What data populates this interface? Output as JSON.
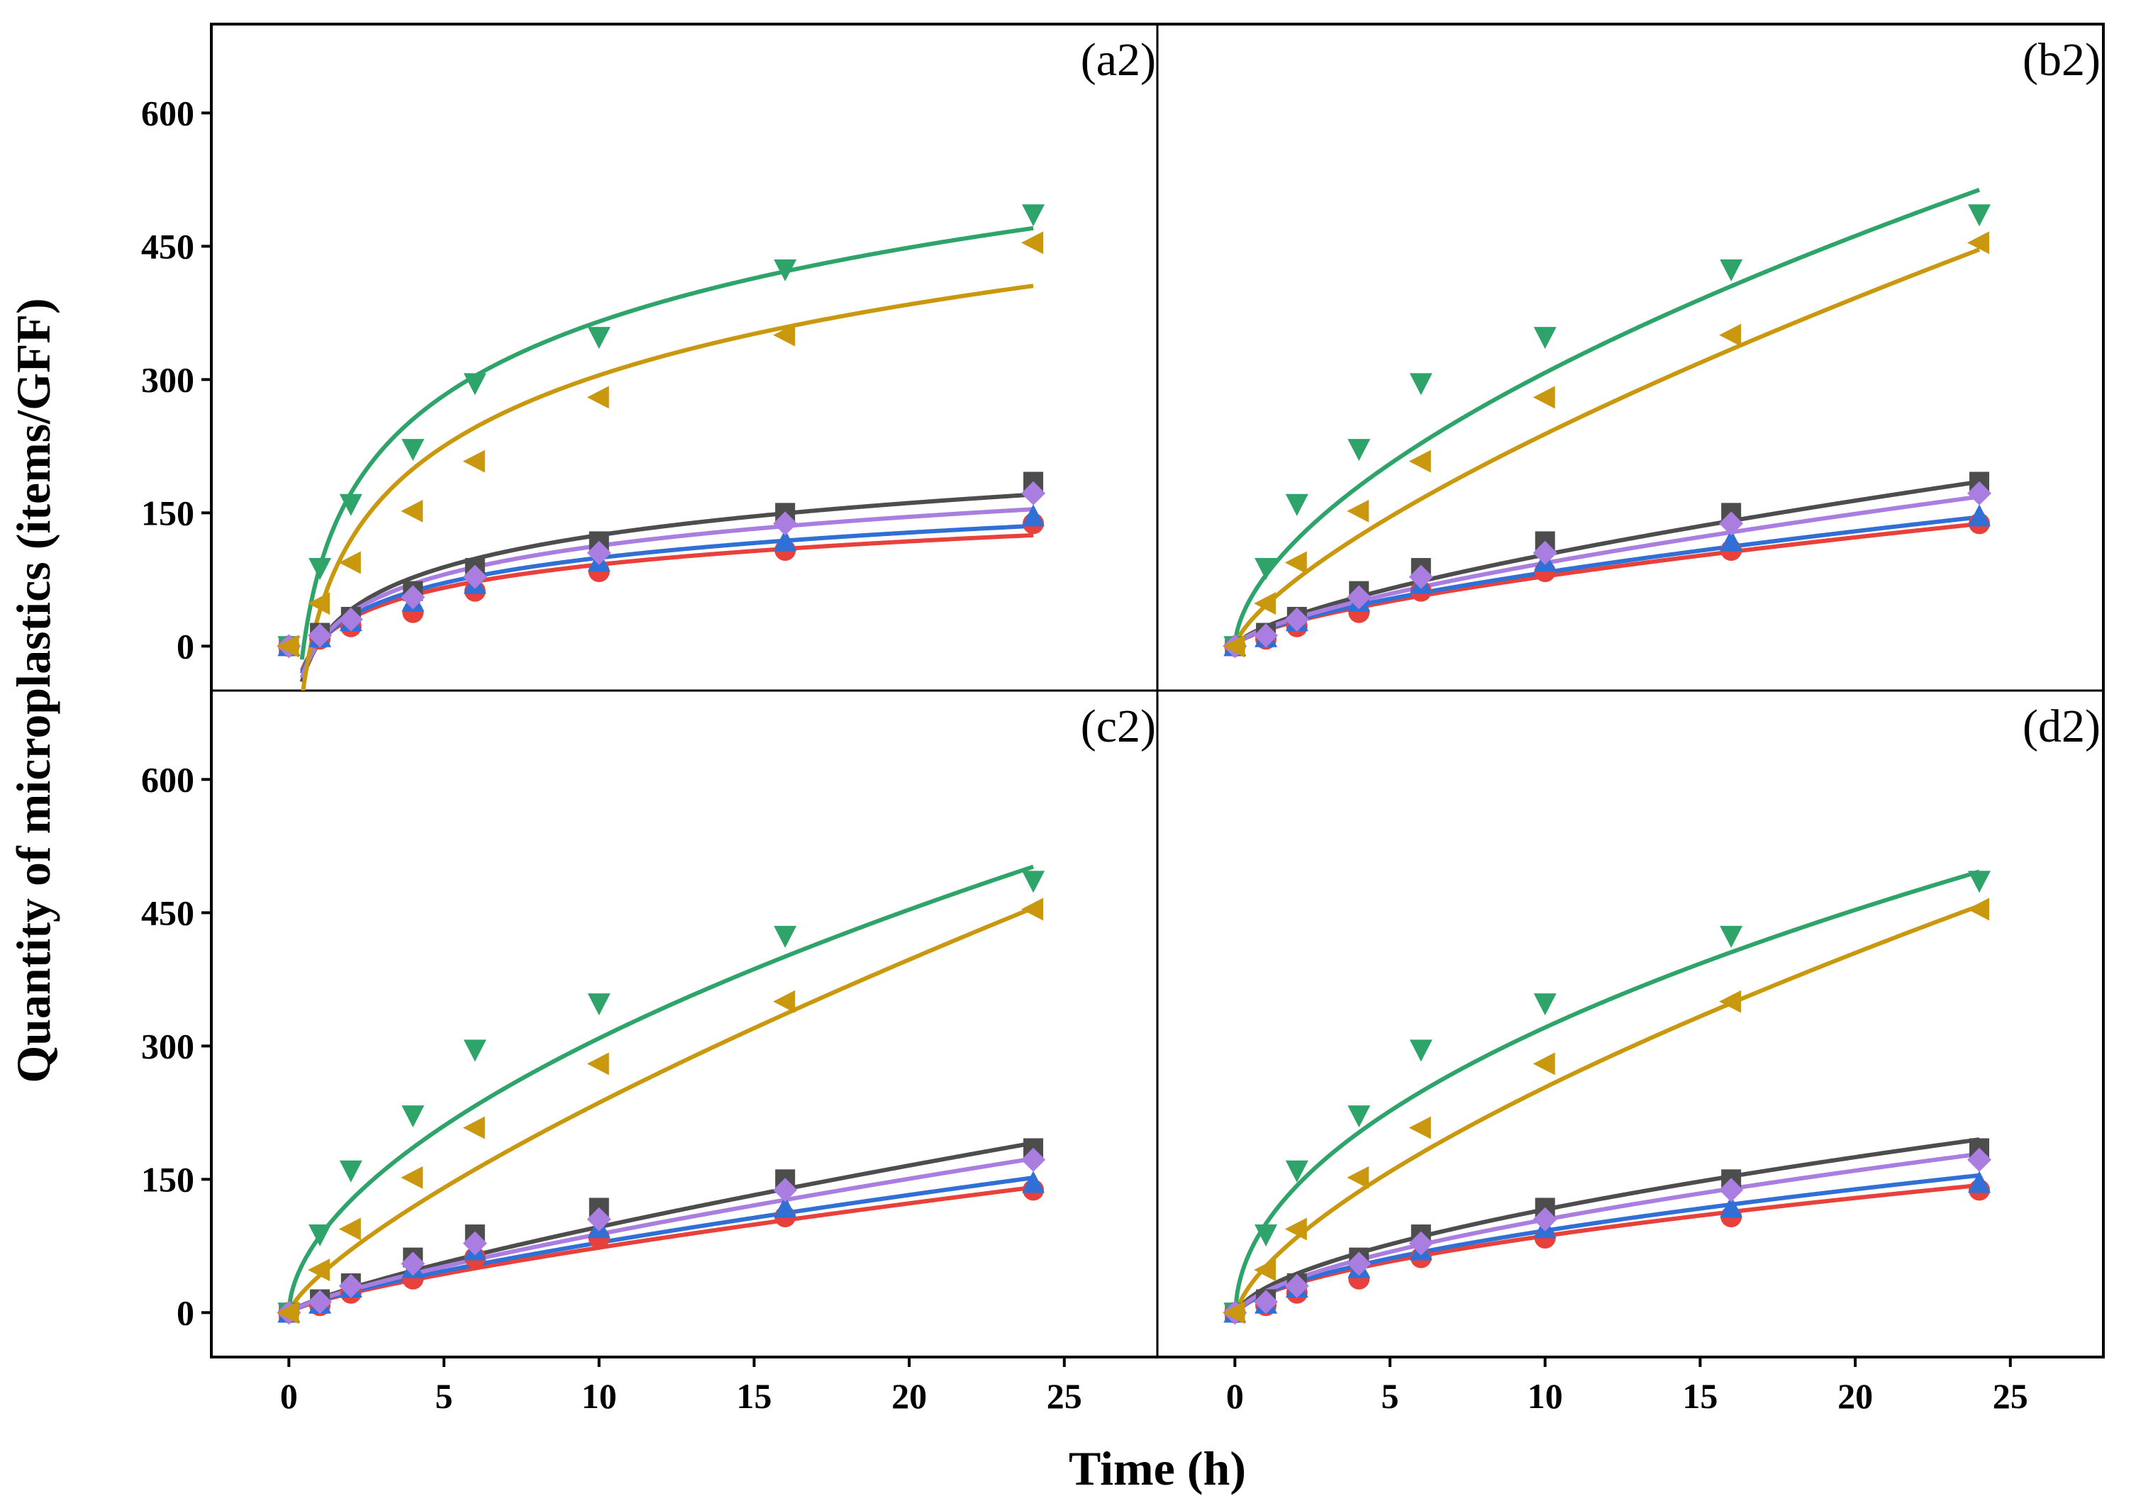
{
  "chart_data": {
    "type": "scatter",
    "xlabel": "Time (h)",
    "ylabel": "Quantity of microplastics (items/GFF)",
    "xlim": [
      -2.5,
      28
    ],
    "ylim": [
      -50,
      700
    ],
    "x_ticks": [
      0,
      5,
      10,
      15,
      20,
      25
    ],
    "y_ticks": [
      0,
      150,
      300,
      450,
      600
    ],
    "x": [
      0,
      1,
      2,
      4,
      6,
      10,
      16,
      24
    ],
    "series_styles": [
      {
        "name": "black",
        "marker": "square",
        "color": "#4d4d4d"
      },
      {
        "name": "red",
        "marker": "circle",
        "color": "#e8413b"
      },
      {
        "name": "blue",
        "marker": "triangle-up",
        "color": "#2f6fd6"
      },
      {
        "name": "green",
        "marker": "triangle-down",
        "color": "#2fa46a"
      },
      {
        "name": "purple",
        "marker": "diamond",
        "color": "#a97ee0"
      },
      {
        "name": "gold",
        "marker": "triangle-left",
        "color": "#c9980e"
      }
    ],
    "observed": {
      "black": [
        0,
        15,
        33,
        62,
        88,
        118,
        150,
        185
      ],
      "red": [
        0,
        8,
        22,
        38,
        62,
        84,
        108,
        138
      ],
      "blue": [
        0,
        10,
        28,
        50,
        70,
        95,
        118,
        146
      ],
      "green": [
        0,
        88,
        160,
        222,
        296,
        348,
        424,
        486
      ],
      "purple": [
        0,
        12,
        30,
        55,
        78,
        105,
        138,
        172
      ],
      "gold": [
        0,
        48,
        94,
        152,
        208,
        280,
        350,
        454
      ]
    },
    "panels": [
      {
        "label": "(a2)",
        "fit": "log",
        "fits": {
          "black": {
            "a": 5,
            "b": 52.1
          },
          "red": {
            "a": 5,
            "b": 37.7
          },
          "blue": {
            "a": 5,
            "b": 41.0
          },
          "green": {
            "a": 89,
            "b": 120.0
          },
          "purple": {
            "a": 5,
            "b": 46.9
          },
          "gold": {
            "a": 40,
            "b": 115.0
          }
        }
      },
      {
        "label": "(b2)",
        "fit": "power",
        "fits": {
          "black": {
            "a": 22,
            "b": 0.67
          },
          "red": {
            "a": 18,
            "b": 0.64
          },
          "blue": {
            "a": 19,
            "b": 0.64
          },
          "green": {
            "a": 80,
            "b": 0.585
          },
          "purple": {
            "a": 20,
            "b": 0.67
          },
          "gold": {
            "a": 46,
            "b": 0.715
          }
        }
      },
      {
        "label": "(c2)",
        "fit": "power",
        "fits": {
          "black": {
            "a": 16,
            "b": 0.78
          },
          "red": {
            "a": 13,
            "b": 0.75
          },
          "blue": {
            "a": 14,
            "b": 0.75
          },
          "green": {
            "a": 86,
            "b": 0.555
          },
          "purple": {
            "a": 15,
            "b": 0.77
          },
          "gold": {
            "a": 42,
            "b": 0.75
          }
        }
      },
      {
        "label": "(d2)",
        "fit": "logpow",
        "fits": {
          "black": {
            "a": 28,
            "b": 0.6
          },
          "red": {
            "a": 21,
            "b": 0.59
          },
          "blue": {
            "a": 22,
            "b": 0.6
          },
          "green": {
            "a": 100,
            "b": 0.5
          },
          "purple": {
            "a": 24,
            "b": 0.62
          },
          "gold": {
            "a": 52,
            "b": 0.68
          }
        }
      }
    ]
  }
}
